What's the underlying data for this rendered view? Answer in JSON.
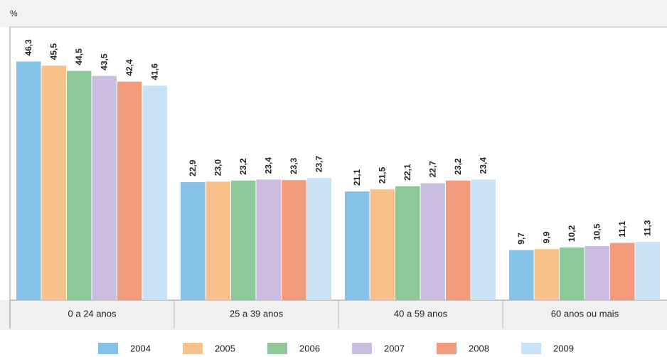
{
  "chart_data": {
    "type": "bar",
    "y_label": "%",
    "categories": [
      "0 a 24 anos",
      "25 a 39 anos",
      "40 a 59 anos",
      "60 anos ou mais"
    ],
    "series": [
      {
        "name": "2004",
        "color": "#86c2e7",
        "values": [
          46.3,
          22.9,
          21.1,
          9.7
        ],
        "value_labels": [
          "46,3",
          "22,9",
          "21,1",
          "9,7"
        ]
      },
      {
        "name": "2005",
        "color": "#f8c08b",
        "values": [
          45.5,
          23.0,
          21.5,
          9.9
        ],
        "value_labels": [
          "45,5",
          "23,0",
          "21,5",
          "9,9"
        ]
      },
      {
        "name": "2006",
        "color": "#8ec899",
        "values": [
          44.5,
          23.2,
          22.1,
          10.2
        ],
        "value_labels": [
          "44,5",
          "23,2",
          "22,1",
          "10,2"
        ]
      },
      {
        "name": "2007",
        "color": "#cabde0",
        "values": [
          43.5,
          23.4,
          22.7,
          10.5
        ],
        "value_labels": [
          "43,5",
          "23,4",
          "22,7",
          "10,5"
        ]
      },
      {
        "name": "2008",
        "color": "#f29b7b",
        "values": [
          42.4,
          23.3,
          23.2,
          11.1
        ],
        "value_labels": [
          "42,4",
          "23,3",
          "23,2",
          "11,1"
        ]
      },
      {
        "name": "2009",
        "color": "#cae2f5",
        "values": [
          41.6,
          23.7,
          23.4,
          11.3
        ],
        "value_labels": [
          "41,6",
          "23,7",
          "23,4",
          "11,3"
        ]
      }
    ],
    "ylim": [
      0,
      53
    ],
    "legend": "bottom"
  }
}
